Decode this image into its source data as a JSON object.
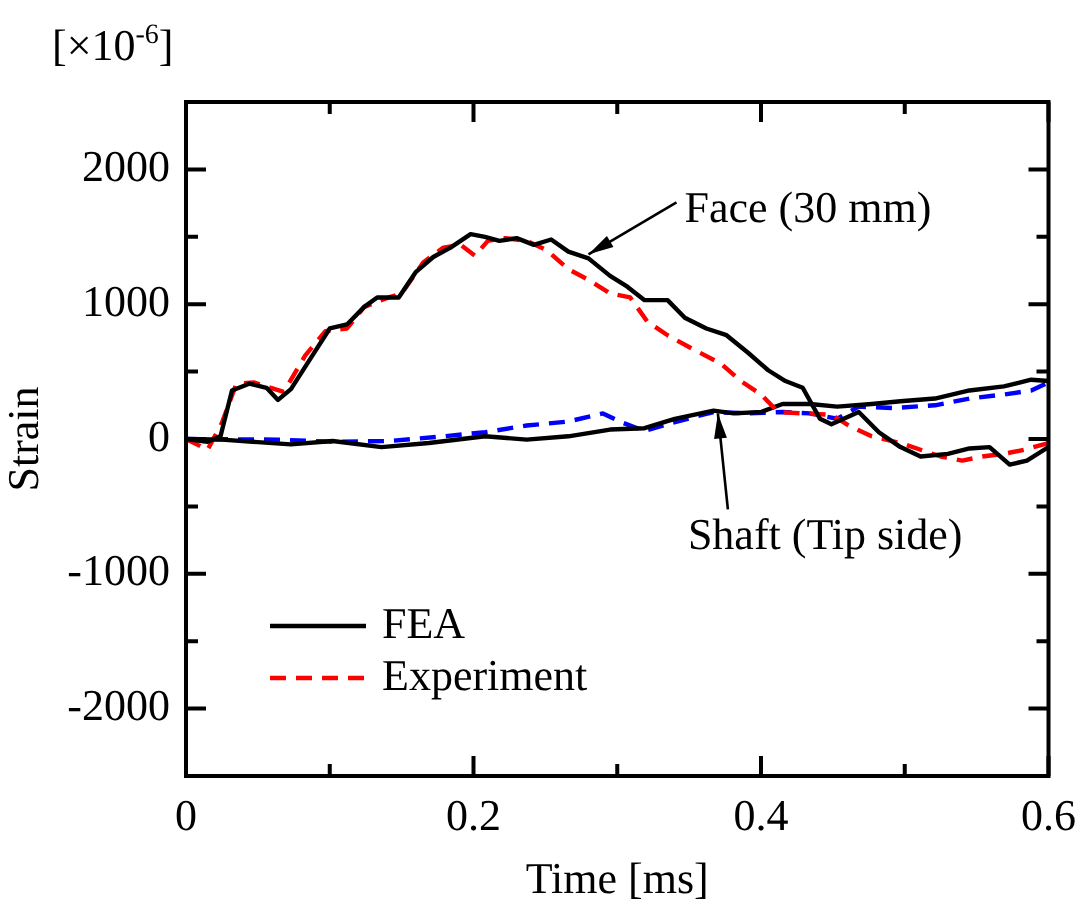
{
  "chart_data": {
    "type": "line",
    "xlabel": "Time [ms]",
    "ylabel": "Strain",
    "xlim": [
      0,
      0.6
    ],
    "ylim": [
      -2500,
      2500
    ],
    "xticks": [
      0,
      {
        "value": 0.1,
        "label": null
      },
      0.2,
      {
        "value": 0.3,
        "label": null
      },
      0.4,
      {
        "value": 0.5,
        "label": null
      },
      0.6
    ],
    "yticks": [
      -2000,
      {
        "value": -1500,
        "label": null
      },
      -1000,
      {
        "value": -500,
        "label": null
      },
      0,
      {
        "value": 500,
        "label": null
      },
      1000,
      {
        "value": 1500,
        "label": null
      },
      2000
    ],
    "legend": "bottom left",
    "marker": "none",
    "grid": false,
    "annotations": [
      "[×10$^{-6}$]",
      {
        "text": "Face (30 mm)",
        "x": 0.28,
        "y": 1370
      },
      {
        "text": "Shaft (Tip side)",
        "x": 0.37,
        "y": 190
      }
    ],
    "series": [
      {
        "name": "FEA",
        "color": "#000000",
        "line_style": "solid",
        "x": [
          0,
          0.015,
          0.024,
          0.032,
          0.044,
          0.056,
          0.064,
          0.073,
          0.088,
          0.1,
          0.112,
          0.124,
          0.133,
          0.148,
          0.16,
          0.172,
          0.184,
          0.198,
          0.208,
          0.218,
          0.23,
          0.242,
          0.254,
          0.266,
          0.28,
          0.295,
          0.307,
          0.319,
          0.335,
          0.347,
          0.362,
          0.376,
          0.391,
          0.405,
          0.417,
          0.429,
          0.441,
          0.449,
          0.468,
          0.482,
          0.497,
          0.511,
          0.53,
          0.545,
          0.559,
          0.573,
          0.585,
          0.6
        ],
        "values": [
          0,
          -20,
          20,
          360,
          410,
          380,
          290,
          370,
          620,
          820,
          850,
          980,
          1050,
          1050,
          1240,
          1350,
          1420,
          1520,
          1500,
          1470,
          1490,
          1440,
          1480,
          1390,
          1340,
          1210,
          1130,
          1030,
          1030,
          900,
          820,
          770,
          640,
          510,
          430,
          380,
          150,
          110,
          200,
          50,
          -60,
          -130,
          -110,
          -70,
          -60,
          -190,
          -160,
          -60
        ]
      },
      {
        "name": "Experiment",
        "color": "#ff0000",
        "line_style": "dashed",
        "x": [
          0,
          0.015,
          0.025,
          0.035,
          0.047,
          0.059,
          0.068,
          0.083,
          0.097,
          0.112,
          0.124,
          0.141,
          0.15,
          0.165,
          0.179,
          0.191,
          0.201,
          0.21,
          0.222,
          0.237,
          0.251,
          0.266,
          0.28,
          0.295,
          0.309,
          0.321,
          0.335,
          0.352,
          0.372,
          0.386,
          0.4,
          0.412,
          0.429,
          0.449,
          0.461,
          0.477,
          0.497,
          0.511,
          0.525,
          0.54,
          0.554,
          0.569,
          0.583,
          0.6
        ],
        "values": [
          0,
          -80,
          120,
          410,
          420,
          380,
          350,
          620,
          800,
          820,
          980,
          1050,
          1080,
          1310,
          1420,
          1440,
          1360,
          1470,
          1490,
          1470,
          1400,
          1260,
          1180,
          1080,
          1050,
          870,
          770,
          670,
          560,
          430,
          330,
          200,
          190,
          180,
          100,
          20,
          -30,
          -80,
          -130,
          -160,
          -130,
          -110,
          -80,
          -30
        ]
      },
      {
        "color": "#000000",
        "line_style": "solid",
        "x": [
          0,
          0.025,
          0.073,
          0.102,
          0.136,
          0.169,
          0.208,
          0.237,
          0.266,
          0.295,
          0.319,
          0.34,
          0.367,
          0.381,
          0.4,
          0.415,
          0.434,
          0.453,
          0.477,
          0.497,
          0.521,
          0.545,
          0.569,
          0.588,
          0.6
        ],
        "values": [
          0,
          -5,
          -40,
          -15,
          -60,
          -30,
          20,
          -5,
          20,
          70,
          80,
          150,
          210,
          190,
          200,
          260,
          260,
          240,
          260,
          280,
          300,
          360,
          390,
          440,
          430
        ]
      },
      {
        "color": "#0000ff",
        "line_style": "dashed",
        "x": [
          0,
          0.064,
          0.102,
          0.141,
          0.179,
          0.208,
          0.237,
          0.266,
          0.29,
          0.304,
          0.319,
          0.338,
          0.367,
          0.391,
          0.415,
          0.434,
          0.453,
          0.468,
          0.492,
          0.521,
          0.545,
          0.569,
          0.588,
          0.6
        ],
        "values": [
          0,
          -5,
          -20,
          -15,
          20,
          50,
          100,
          130,
          190,
          120,
          60,
          120,
          200,
          190,
          200,
          190,
          150,
          240,
          230,
          250,
          300,
          330,
          360,
          420
        ]
      }
    ]
  }
}
